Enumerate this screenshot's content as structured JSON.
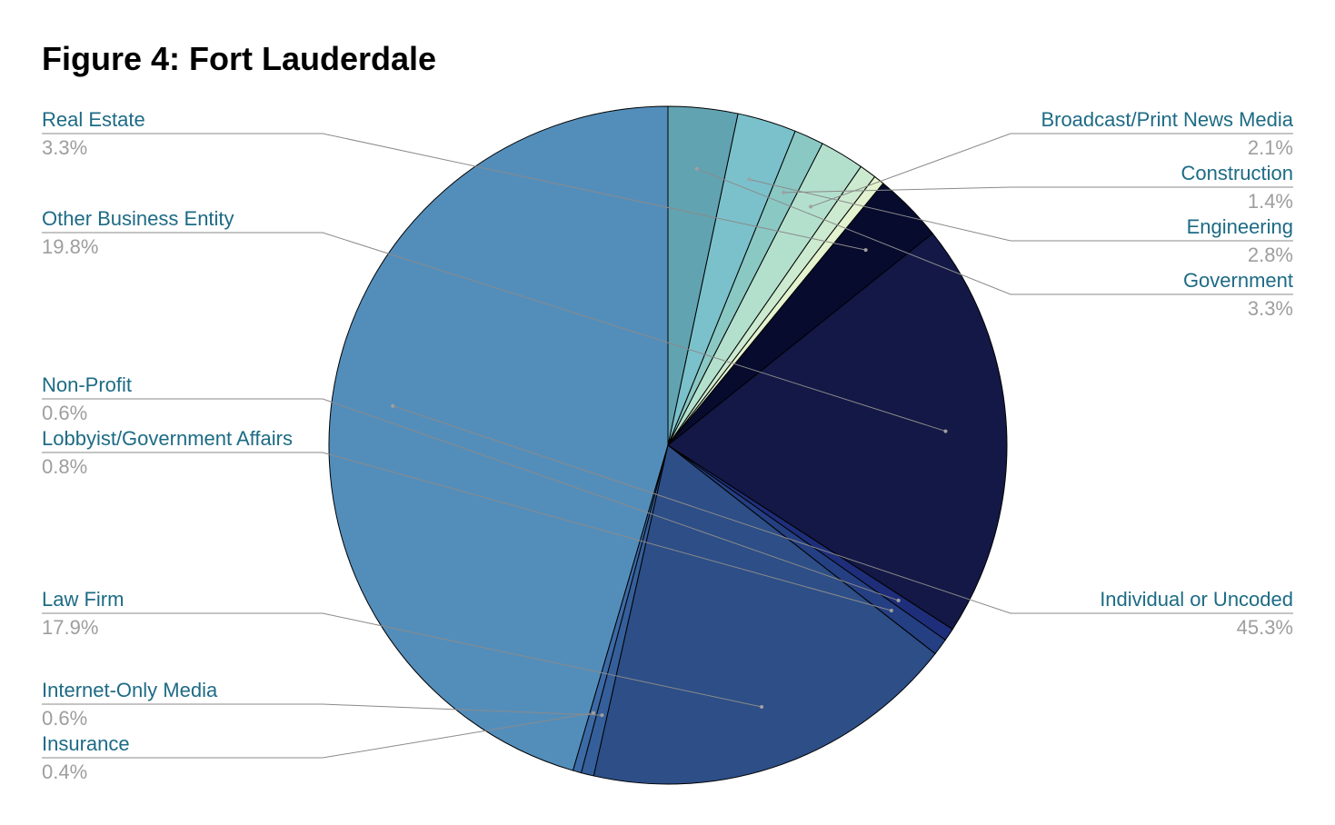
{
  "chart_data": {
    "type": "pie",
    "title": "Figure 4: Fort Lauderdale",
    "slices": [
      {
        "label": "Individual or Uncoded",
        "value": 45.3,
        "display": "45.3%",
        "color": "#538ebb"
      },
      {
        "label": "Insurance",
        "value": 0.4,
        "display": "0.4%",
        "color": "#3c6aa6"
      },
      {
        "label": "Internet-Only Media",
        "value": 0.6,
        "display": "0.6%",
        "color": "#355f9a"
      },
      {
        "label": "Law Firm",
        "value": 17.9,
        "display": "17.9%",
        "color": "#2d4e87"
      },
      {
        "label": "Lobbyist/Government Affairs",
        "value": 0.8,
        "display": "0.8%",
        "color": "#243f82"
      },
      {
        "label": "Non-Profit",
        "value": 0.6,
        "display": "0.6%",
        "color": "#1f2e7a"
      },
      {
        "label": "Other Business Entity",
        "value": 19.8,
        "display": "19.8%",
        "color": "#131846"
      },
      {
        "label": "Real Estate",
        "value": 3.3,
        "display": "3.3%",
        "color": "#070b2e"
      },
      {
        "label": "",
        "value": 0.5,
        "display": "",
        "color": "#e4f3cf"
      },
      {
        "label": "",
        "value": 0.8,
        "display": "",
        "color": "#cbeacf"
      },
      {
        "label": "Broadcast/Print News Media",
        "value": 2.1,
        "display": "2.1%",
        "color": "#b3e0cd"
      },
      {
        "label": "Construction",
        "value": 1.4,
        "display": "1.4%",
        "color": "#8ac8c4"
      },
      {
        "label": "Engineering",
        "value": 2.8,
        "display": "2.8%",
        "color": "#7bc1cb"
      },
      {
        "label": "Government",
        "value": 3.3,
        "display": "3.3%",
        "color": "#62a3b2"
      }
    ],
    "legend": "callout labels"
  }
}
